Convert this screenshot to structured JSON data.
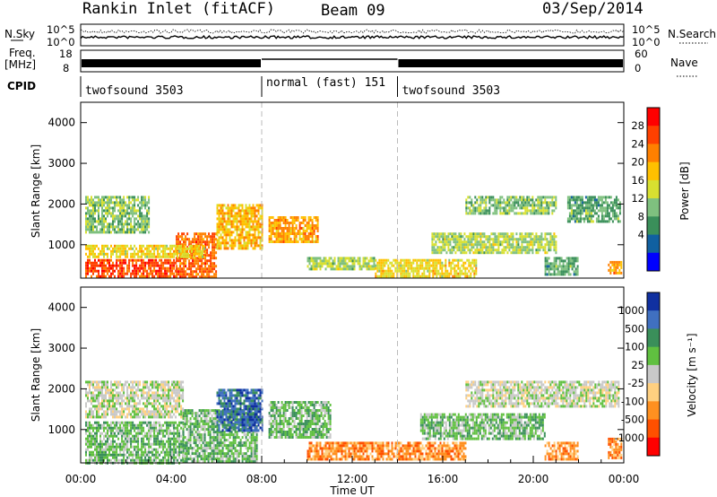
{
  "header": {
    "station": "Rankin Inlet (fitACF)",
    "beam": "Beam 09",
    "date": "03/Sep/2014"
  },
  "panels": {
    "nsky_label": "N.Sky",
    "nsky_ticks": [
      "10^5",
      "10^0"
    ],
    "nsearch_label": "N.Search",
    "nsearch_ticks": [
      "10^5",
      "10^0"
    ],
    "freq_label_1": "Freq.",
    "freq_label_2": "[MHz]",
    "freq_ticks": [
      "18",
      "8"
    ],
    "nave_label": "Nave",
    "nave_ticks": [
      "60",
      "0"
    ],
    "cpid_label": "CPID",
    "cpid_segments": [
      {
        "label": "twofsound 3503",
        "start": 0,
        "end": 8
      },
      {
        "label": "normal (fast) 151",
        "start": 8,
        "end": 14
      },
      {
        "label": "twofsound 3503",
        "start": 14,
        "end": 24
      }
    ]
  },
  "chart_data": [
    {
      "type": "heatmap",
      "quantity": "Power",
      "colorbar_label": "Power [dB]",
      "ylabel": "Slant Range [km]",
      "ylim": [
        180,
        4500
      ],
      "yticks": [
        1000,
        2000,
        3000,
        4000
      ],
      "xlim": [
        0,
        24
      ],
      "colorbar_ticks": [
        "28",
        "24",
        "20",
        "16",
        "12",
        "8",
        "4"
      ],
      "colorbar_colors": [
        "#ff0000",
        "#ff4000",
        "#ff8000",
        "#ffc000",
        "#d8e030",
        "#7fc07f",
        "#3a8f5a",
        "#1060a0",
        "#0000ff"
      ],
      "echo_regions": [
        {
          "t": [
            0.2,
            4.2
          ],
          "r": [
            200,
            650
          ],
          "level": 28
        },
        {
          "t": [
            4.2,
            6.0
          ],
          "r": [
            200,
            1300
          ],
          "level": 26
        },
        {
          "t": [
            0.2,
            5.5
          ],
          "r": [
            700,
            1000
          ],
          "level": 18
        },
        {
          "t": [
            0.2,
            3.0
          ],
          "r": [
            1300,
            2200
          ],
          "level": 12
        },
        {
          "t": [
            6.0,
            8.0
          ],
          "r": [
            900,
            2000
          ],
          "level": 20
        },
        {
          "t": [
            8.3,
            10.5
          ],
          "r": [
            1100,
            1700
          ],
          "level": 22
        },
        {
          "t": [
            10.0,
            13.0
          ],
          "r": [
            400,
            700
          ],
          "level": 14
        },
        {
          "t": [
            13.0,
            17.5
          ],
          "r": [
            200,
            650
          ],
          "level": 18
        },
        {
          "t": [
            15.5,
            21.0
          ],
          "r": [
            800,
            1300
          ],
          "level": 14
        },
        {
          "t": [
            17.0,
            21.0
          ],
          "r": [
            1800,
            2200
          ],
          "level": 12
        },
        {
          "t": [
            21.5,
            23.8
          ],
          "r": [
            1600,
            2200
          ],
          "level": 10
        },
        {
          "t": [
            20.5,
            22.0
          ],
          "r": [
            300,
            700
          ],
          "level": 10
        },
        {
          "t": [
            23.3,
            23.9
          ],
          "r": [
            300,
            600
          ],
          "level": 22
        }
      ]
    },
    {
      "type": "heatmap",
      "quantity": "Velocity",
      "colorbar_label": "Velocity [m s⁻¹]",
      "ylabel": "Slant Range [km]",
      "ylim": [
        180,
        4500
      ],
      "yticks": [
        1000,
        2000,
        3000,
        4000
      ],
      "xlim": [
        0,
        24
      ],
      "xticks": [
        "00:00",
        "04:00",
        "08:00",
        "12:00",
        "16:00",
        "20:00",
        "00:00"
      ],
      "xlabel": "Time UT",
      "colorbar_ticks": [
        "1000",
        "500",
        "100",
        "25",
        "-25",
        "-100",
        "-500",
        "-1000"
      ],
      "colorbar_colors": [
        "#1030a0",
        "#4070c0",
        "#3a8f5a",
        "#60c040",
        "#c8c8c8",
        "#ffd080",
        "#ff9020",
        "#ff5000",
        "#ff0000"
      ],
      "echo_regions": [
        {
          "t": [
            0.2,
            4.5
          ],
          "r": [
            1300,
            2200
          ],
          "level": 0
        },
        {
          "t": [
            0.2,
            4.5
          ],
          "r": [
            200,
            1200
          ],
          "level": 80
        },
        {
          "t": [
            4.5,
            7.8
          ],
          "r": [
            200,
            1500
          ],
          "level": 90
        },
        {
          "t": [
            6.0,
            8.0
          ],
          "r": [
            1000,
            2000
          ],
          "level": 700
        },
        {
          "t": [
            8.3,
            11.0
          ],
          "r": [
            800,
            1700
          ],
          "level": 80
        },
        {
          "t": [
            10.0,
            17.0
          ],
          "r": [
            300,
            700
          ],
          "level": -150
        },
        {
          "t": [
            15.0,
            20.5
          ],
          "r": [
            800,
            1400
          ],
          "level": 80
        },
        {
          "t": [
            17.0,
            23.8
          ],
          "r": [
            1600,
            2200
          ],
          "level": 0
        },
        {
          "t": [
            20.5,
            22.0
          ],
          "r": [
            300,
            700
          ],
          "level": -200
        },
        {
          "t": [
            23.3,
            23.9
          ],
          "r": [
            300,
            800
          ],
          "level": -300
        }
      ]
    }
  ]
}
